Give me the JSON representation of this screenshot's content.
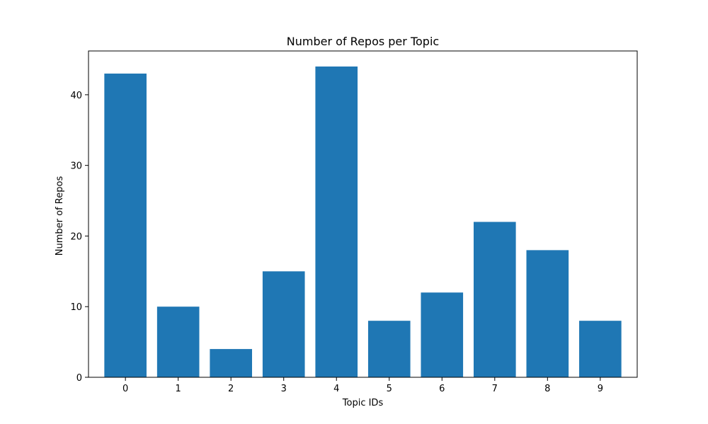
{
  "chart_data": {
    "type": "bar",
    "title": "Number of Repos per Topic",
    "xlabel": "Topic IDs",
    "ylabel": "Number of Repos",
    "categories": [
      "0",
      "1",
      "2",
      "3",
      "4",
      "5",
      "6",
      "7",
      "8",
      "9"
    ],
    "values": [
      43,
      10,
      4,
      15,
      44,
      8,
      12,
      22,
      18,
      8
    ],
    "ylim": [
      0,
      46.2
    ],
    "yticks": [
      0,
      10,
      20,
      30,
      40
    ],
    "grid": false,
    "legend": "none",
    "bar_color": "#1f77b4"
  }
}
